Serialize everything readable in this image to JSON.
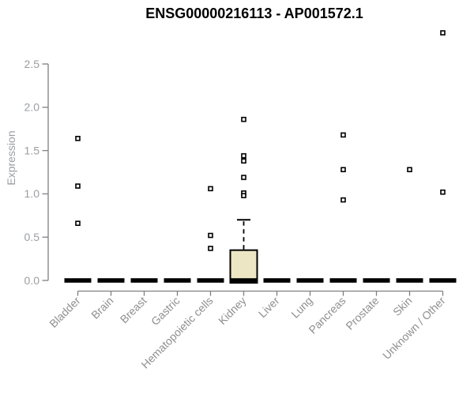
{
  "title": "ENSG00000216113 - AP001572.1",
  "colors": {
    "title_text": "#000000",
    "axis_line": "#808080",
    "tick_text": "#9a9ea3",
    "category_text": "#8f8f8f",
    "box_fill": "#ece6c4",
    "box_border": "#000000",
    "median_bar": "#000000",
    "marker_stroke": "#000000",
    "marker_fill": "#ffffff",
    "background": "#ffffff"
  },
  "chart_data": {
    "type": "boxplot",
    "title": "ENSG00000216113 - AP001572.1",
    "xlabel": "",
    "ylabel": "Expression",
    "ylim": [
      0,
      2.5
    ],
    "yticks": [
      "0.0",
      "0.5",
      "1.0",
      "1.5",
      "2.0",
      "2.5"
    ],
    "grid": false,
    "legend": null,
    "categories": [
      "Bladder",
      "Brain",
      "Breast",
      "Gastric",
      "Hematopoietic cells",
      "Kidney",
      "Liver",
      "Lung",
      "Pancreas",
      "Prostate",
      "Skin",
      "Unknown / Other"
    ],
    "boxes": [
      {
        "category": "Bladder",
        "median": 0,
        "q1": 0,
        "q3": 0,
        "whisker_low": 0,
        "whisker_high": 0,
        "outliers": [
          1.64,
          1.09,
          0.66
        ]
      },
      {
        "category": "Brain",
        "median": 0,
        "q1": 0,
        "q3": 0,
        "whisker_low": 0,
        "whisker_high": 0,
        "outliers": []
      },
      {
        "category": "Breast",
        "median": 0,
        "q1": 0,
        "q3": 0,
        "whisker_low": 0,
        "whisker_high": 0,
        "outliers": []
      },
      {
        "category": "Gastric",
        "median": 0,
        "q1": 0,
        "q3": 0,
        "whisker_low": 0,
        "whisker_high": 0,
        "outliers": []
      },
      {
        "category": "Hematopoietic cells",
        "median": 0,
        "q1": 0,
        "q3": 0,
        "whisker_low": 0,
        "whisker_high": 0,
        "outliers": [
          1.06,
          0.52,
          0.37
        ]
      },
      {
        "category": "Kidney",
        "median": 0,
        "q1": 0,
        "q3": 0.35,
        "whisker_low": 0,
        "whisker_high": 0.7,
        "outliers": [
          1.86,
          1.44,
          1.38,
          1.19,
          1.01,
          0.98
        ]
      },
      {
        "category": "Liver",
        "median": 0,
        "q1": 0,
        "q3": 0,
        "whisker_low": 0,
        "whisker_high": 0,
        "outliers": []
      },
      {
        "category": "Lung",
        "median": 0,
        "q1": 0,
        "q3": 0,
        "whisker_low": 0,
        "whisker_high": 0,
        "outliers": []
      },
      {
        "category": "Pancreas",
        "median": 0,
        "q1": 0,
        "q3": 0,
        "whisker_low": 0,
        "whisker_high": 0,
        "outliers": [
          1.68,
          1.28,
          0.93
        ]
      },
      {
        "category": "Prostate",
        "median": 0,
        "q1": 0,
        "q3": 0,
        "whisker_low": 0,
        "whisker_high": 0,
        "outliers": []
      },
      {
        "category": "Skin",
        "median": 0,
        "q1": 0,
        "q3": 0,
        "whisker_low": 0,
        "whisker_high": 0,
        "outliers": [
          1.28
        ]
      },
      {
        "category": "Unknown / Other",
        "median": 0,
        "q1": 0,
        "q3": 0,
        "whisker_low": 0,
        "whisker_high": 0,
        "outliers": [
          2.86,
          1.02
        ]
      }
    ]
  }
}
